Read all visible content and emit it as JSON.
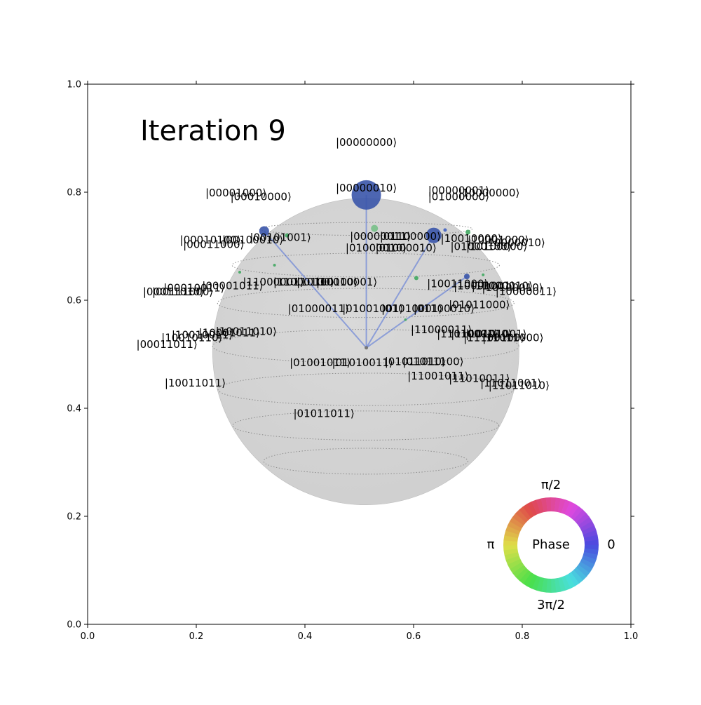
{
  "colors": {
    "sphere": "#cfcfcf",
    "sphere_edge": "#bdbdbd",
    "grid_line": "#8c8c8c",
    "stem": "#5070d8",
    "center_dot": "#777777",
    "point_phase0": "#3050b0",
    "point_phase_3pi2": "#40a860"
  },
  "chart_data": {
    "type": "scatter",
    "title": "Iteration 9",
    "xlim": [
      0,
      1
    ],
    "ylim": [
      0,
      1
    ],
    "x_ticks": [
      "0.0",
      "0.2",
      "0.4",
      "0.6",
      "0.8",
      "1.0"
    ],
    "y_ticks": [
      "0.0",
      "0.2",
      "0.4",
      "0.6",
      "0.8",
      "1.0"
    ],
    "xlabel": "",
    "ylabel": "",
    "sphere": {
      "center": [
        0.512,
        0.505
      ],
      "radius": 0.282
    },
    "state_labels": [
      {
        "text": "|00000000⟩",
        "x": 0.513,
        "y": 0.886
      },
      {
        "text": "|00001000⟩",
        "x": 0.273,
        "y": 0.792
      },
      {
        "text": "|00010000⟩",
        "x": 0.319,
        "y": 0.785
      },
      {
        "text": "|00000010⟩",
        "x": 0.513,
        "y": 0.801
      },
      {
        "text": "|00000001⟩",
        "x": 0.683,
        "y": 0.797
      },
      {
        "text": "|10000000⟩",
        "x": 0.739,
        "y": 0.792
      },
      {
        "text": "|01000000⟩",
        "x": 0.683,
        "y": 0.785
      },
      {
        "text": "|00010100⟩",
        "x": 0.226,
        "y": 0.705
      },
      {
        "text": "|00100010⟩",
        "x": 0.304,
        "y": 0.705
      },
      {
        "text": "|00101001⟩",
        "x": 0.355,
        "y": 0.71
      },
      {
        "text": "|00011000⟩",
        "x": 0.232,
        "y": 0.697
      },
      {
        "text": "|00000011⟩",
        "x": 0.539,
        "y": 0.712
      },
      {
        "text": "|01100000⟩",
        "x": 0.594,
        "y": 0.712
      },
      {
        "text": "|01000010⟩",
        "x": 0.586,
        "y": 0.69
      },
      {
        "text": "|01000010⟩",
        "x": 0.531,
        "y": 0.69
      },
      {
        "text": "|10010000⟩",
        "x": 0.706,
        "y": 0.708
      },
      {
        "text": "|10001000⟩",
        "x": 0.756,
        "y": 0.705
      },
      {
        "text": "|10000010⟩",
        "x": 0.786,
        "y": 0.7
      },
      {
        "text": "|01000100⟩",
        "x": 0.724,
        "y": 0.693
      },
      {
        "text": "|10100000⟩",
        "x": 0.753,
        "y": 0.693
      },
      {
        "text": "|00010011⟩",
        "x": 0.196,
        "y": 0.616
      },
      {
        "text": "|00001011⟩",
        "x": 0.267,
        "y": 0.62
      },
      {
        "text": "|00011010⟩",
        "x": 0.158,
        "y": 0.609
      },
      {
        "text": "|00111000⟩",
        "x": 0.175,
        "y": 0.609
      },
      {
        "text": "|11000001⟩",
        "x": 0.342,
        "y": 0.627
      },
      {
        "text": "|11000100⟩",
        "x": 0.398,
        "y": 0.627
      },
      {
        "text": "|10100100⟩",
        "x": 0.441,
        "y": 0.627
      },
      {
        "text": "|10010001⟩",
        "x": 0.477,
        "y": 0.627
      },
      {
        "text": "|10011000⟩",
        "x": 0.681,
        "y": 0.624
      },
      {
        "text": "|10001001⟩",
        "x": 0.73,
        "y": 0.62
      },
      {
        "text": "|10100010⟩",
        "x": 0.782,
        "y": 0.617
      },
      {
        "text": "|11000010⟩",
        "x": 0.763,
        "y": 0.62
      },
      {
        "text": "|10000011⟩",
        "x": 0.807,
        "y": 0.61
      },
      {
        "text": "|01000011⟩",
        "x": 0.425,
        "y": 0.578
      },
      {
        "text": "|01001001⟩",
        "x": 0.525,
        "y": 0.578
      },
      {
        "text": "|01010001⟩",
        "x": 0.597,
        "y": 0.578
      },
      {
        "text": "|01100010⟩",
        "x": 0.656,
        "y": 0.578
      },
      {
        "text": "|01011000⟩",
        "x": 0.721,
        "y": 0.585
      },
      {
        "text": "|10010011⟩",
        "x": 0.211,
        "y": 0.529
      },
      {
        "text": "|10001011⟩",
        "x": 0.261,
        "y": 0.533
      },
      {
        "text": "|10011010⟩",
        "x": 0.292,
        "y": 0.536
      },
      {
        "text": "|00011011⟩",
        "x": 0.146,
        "y": 0.512
      },
      {
        "text": "|10010110⟩",
        "x": 0.192,
        "y": 0.524
      },
      {
        "text": "|11000011⟩",
        "x": 0.651,
        "y": 0.539
      },
      {
        "text": "|11010001⟩",
        "x": 0.699,
        "y": 0.531
      },
      {
        "text": "|11001010⟩",
        "x": 0.725,
        "y": 0.531
      },
      {
        "text": "|10101001⟩",
        "x": 0.752,
        "y": 0.531
      },
      {
        "text": "|11100100⟩",
        "x": 0.748,
        "y": 0.524
      },
      {
        "text": "|11011000⟩",
        "x": 0.783,
        "y": 0.524
      },
      {
        "text": "|01001011⟩",
        "x": 0.428,
        "y": 0.478
      },
      {
        "text": "|01010011⟩",
        "x": 0.506,
        "y": 0.478
      },
      {
        "text": "|01011010⟩",
        "x": 0.603,
        "y": 0.48
      },
      {
        "text": "|01011100⟩",
        "x": 0.636,
        "y": 0.48
      },
      {
        "text": "|11001011⟩",
        "x": 0.645,
        "y": 0.453
      },
      {
        "text": "|11010011⟩",
        "x": 0.721,
        "y": 0.449
      },
      {
        "text": "|10011011⟩",
        "x": 0.198,
        "y": 0.44
      },
      {
        "text": "|11011001⟩",
        "x": 0.779,
        "y": 0.44
      },
      {
        "text": "|11011010⟩",
        "x": 0.794,
        "y": 0.436
      },
      {
        "text": "|01011011⟩",
        "x": 0.435,
        "y": 0.384
      }
    ],
    "state_points": [
      {
        "x": 0.513,
        "y": 0.795,
        "size": 21,
        "color": "#3a55aa",
        "stem": true
      },
      {
        "x": 0.325,
        "y": 0.728,
        "size": 7,
        "color": "#3a55aa",
        "stem": true
      },
      {
        "x": 0.637,
        "y": 0.72,
        "size": 11,
        "color": "#3a55aa",
        "stem": true
      },
      {
        "x": 0.528,
        "y": 0.733,
        "size": 5,
        "color": "#78c088",
        "stem": false
      },
      {
        "x": 0.7,
        "y": 0.726,
        "size": 3.5,
        "color": "#40a860",
        "stem": false
      },
      {
        "x": 0.367,
        "y": 0.72,
        "size": 3,
        "color": "#40a860",
        "stem": false
      },
      {
        "x": 0.658,
        "y": 0.73,
        "size": 2.5,
        "color": "#4060c0",
        "stem": false
      },
      {
        "x": 0.698,
        "y": 0.644,
        "size": 4,
        "color": "#3a55aa",
        "stem": true
      },
      {
        "x": 0.605,
        "y": 0.641,
        "size": 3,
        "color": "#40a860",
        "stem": false
      },
      {
        "x": 0.728,
        "y": 0.647,
        "size": 2,
        "color": "#40a860",
        "stem": false
      },
      {
        "x": 0.28,
        "y": 0.652,
        "size": 2,
        "color": "#40a860",
        "stem": false
      },
      {
        "x": 0.344,
        "y": 0.665,
        "size": 2,
        "color": "#40a860",
        "stem": false
      },
      {
        "x": 0.585,
        "y": 0.564,
        "size": 1.8,
        "color": "#40a860",
        "stem": false
      }
    ],
    "center_point": {
      "x": 0.513,
      "y": 0.512
    },
    "latitude_rings": [
      {
        "y": 0.732,
        "rx": 0.196,
        "ry": 0.012
      },
      {
        "y": 0.665,
        "rx": 0.246,
        "ry": 0.022
      },
      {
        "y": 0.595,
        "rx": 0.273,
        "ry": 0.027
      },
      {
        "y": 0.515,
        "rx": 0.282,
        "ry": 0.031
      },
      {
        "y": 0.435,
        "rx": 0.272,
        "ry": 0.03
      },
      {
        "y": 0.368,
        "rx": 0.245,
        "ry": 0.027
      },
      {
        "y": 0.302,
        "rx": 0.188,
        "ry": 0.024
      }
    ],
    "phase_wheel": {
      "label": "Phase",
      "tick_0": "0",
      "tick_pi2": "π/2",
      "tick_pi": "π",
      "tick_3pi2": "3π/2"
    }
  }
}
